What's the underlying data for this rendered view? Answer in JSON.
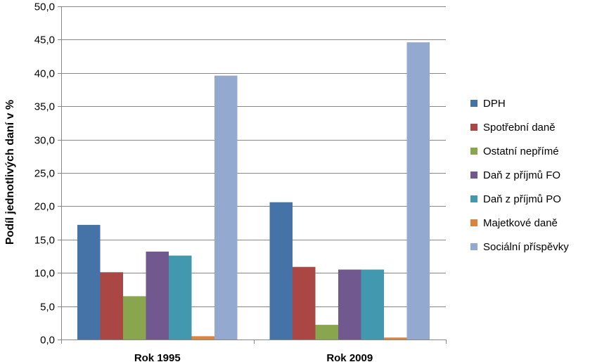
{
  "chart_data": {
    "type": "bar",
    "categories": [
      "Rok 1995",
      "Rok 2009"
    ],
    "series": [
      {
        "name": "DPH",
        "values": [
          17.2,
          20.6
        ],
        "color": "#4572A7"
      },
      {
        "name": "Spotřební daně",
        "values": [
          10.1,
          10.9
        ],
        "color": "#AA4643"
      },
      {
        "name": "Ostatní nepřímé",
        "values": [
          6.5,
          2.2
        ],
        "color": "#89A54E"
      },
      {
        "name": "Daň z příjmů FO",
        "values": [
          13.2,
          10.5
        ],
        "color": "#71588F"
      },
      {
        "name": "Daň z příjmů PO",
        "values": [
          12.6,
          10.5
        ],
        "color": "#4198AF"
      },
      {
        "name": "Majetkové daně",
        "values": [
          0.5,
          0.3
        ],
        "color": "#DB843D"
      },
      {
        "name": "Sociální příspěvky",
        "values": [
          39.6,
          44.6
        ],
        "color": "#93A9CF"
      }
    ],
    "ylabel": "Podíl jednotlivých daní v %",
    "ylim": [
      0,
      50
    ],
    "yticks": [
      "0,0",
      "5,0",
      "10,0",
      "15,0",
      "20,0",
      "25,0",
      "30,0",
      "35,0",
      "40,0",
      "45,0",
      "50,0"
    ],
    "grid": true,
    "legend_position": "right"
  }
}
